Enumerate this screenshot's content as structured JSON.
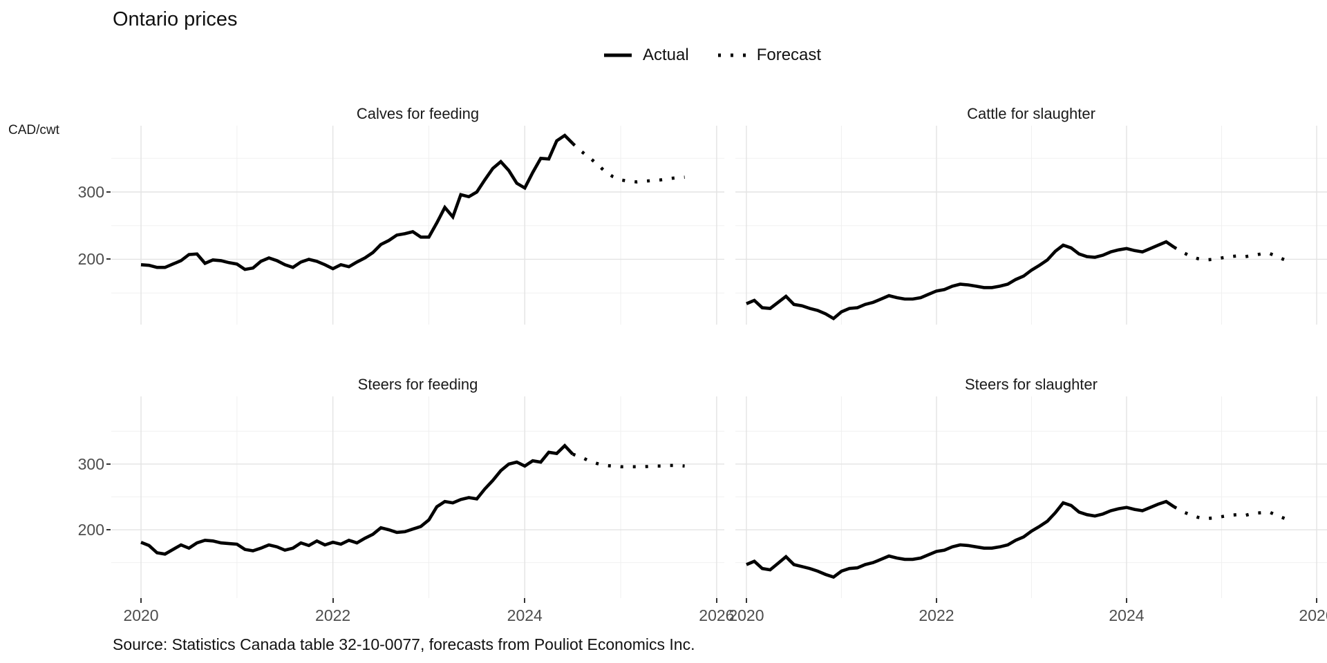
{
  "title": "Ontario prices",
  "y_axis_unit": "CAD/cwt",
  "legend": {
    "actual_label": "Actual",
    "forecast_label": "Forecast"
  },
  "caption": "Source: Statistics Canada table 32-10-0077, forecasts from Pouliot Economics Inc.",
  "colors": {
    "line": "#000000",
    "grid_major": "#e3e3e3",
    "grid_minor": "#f0f0f0",
    "axis_text": "#4d4d4d",
    "tick_mark": "#333333",
    "background": "#ffffff"
  },
  "chart_data": {
    "type": "line",
    "title": "Ontario prices",
    "ylabel": "CAD/cwt",
    "x_tick_labels": [
      "2020",
      "2022",
      "2024",
      "2026"
    ],
    "y_tick_labels": [
      "200",
      "300"
    ],
    "xlim": [
      2019.7,
      2026.1
    ],
    "ylim": [
      100,
      400
    ],
    "grid": "on",
    "legend_position": "top-center",
    "series_style": {
      "actual": "solid",
      "forecast": "dotted"
    },
    "actual_months": "2020-01 to 2024-07, monthly",
    "forecast_months": "2024-08 to 2025-09, monthly",
    "facets": [
      {
        "title": "Calves for feeding",
        "actual": [
          192,
          191,
          188,
          188,
          193,
          198,
          207,
          208,
          194,
          199,
          198,
          195,
          193,
          185,
          187,
          197,
          202,
          198,
          192,
          188,
          196,
          200,
          197,
          192,
          186,
          192,
          189,
          196,
          202,
          210,
          222,
          228,
          236,
          238,
          241,
          233,
          233,
          254,
          277,
          263,
          296,
          293,
          300,
          318,
          335,
          345,
          332,
          313,
          306,
          329,
          350,
          349,
          376,
          384,
          372
        ],
        "forecast": [
          361,
          352,
          342,
          331,
          323,
          318,
          316,
          315,
          316,
          317,
          318,
          320,
          321,
          322
        ]
      },
      {
        "title": "Cattle for slaughter",
        "actual": [
          134,
          139,
          128,
          127,
          136,
          145,
          133,
          131,
          127,
          124,
          119,
          112,
          122,
          127,
          128,
          133,
          136,
          141,
          146,
          143,
          141,
          141,
          143,
          148,
          153,
          155,
          160,
          163,
          162,
          160,
          158,
          158,
          160,
          163,
          170,
          175,
          184,
          191,
          199,
          212,
          221,
          217,
          208,
          204,
          203,
          206,
          211,
          214,
          216,
          213,
          211,
          216,
          221,
          226,
          218
        ],
        "forecast": [
          211,
          205,
          201,
          199,
          200,
          202,
          204,
          205,
          204,
          206,
          208,
          209,
          204,
          199
        ]
      },
      {
        "title": "Steers for feeding",
        "actual": [
          181,
          176,
          165,
          163,
          170,
          177,
          172,
          180,
          184,
          183,
          180,
          179,
          178,
          170,
          168,
          172,
          177,
          174,
          169,
          172,
          180,
          176,
          183,
          177,
          181,
          178,
          184,
          180,
          187,
          193,
          203,
          200,
          196,
          197,
          201,
          205,
          215,
          235,
          243,
          241,
          246,
          249,
          247,
          262,
          275,
          290,
          300,
          303,
          297,
          305,
          303,
          318,
          316,
          328,
          315
        ],
        "forecast": [
          311,
          305,
          301,
          298,
          297,
          296,
          296,
          296,
          296,
          297,
          297,
          298,
          298,
          297
        ]
      },
      {
        "title": "Steers for slaughter",
        "actual": [
          147,
          152,
          141,
          139,
          149,
          159,
          147,
          144,
          141,
          137,
          132,
          128,
          137,
          141,
          142,
          147,
          150,
          155,
          160,
          157,
          155,
          155,
          157,
          162,
          167,
          169,
          174,
          177,
          176,
          174,
          172,
          172,
          174,
          177,
          184,
          189,
          198,
          205,
          213,
          226,
          241,
          237,
          227,
          223,
          221,
          224,
          229,
          232,
          234,
          231,
          229,
          234,
          239,
          243,
          235
        ],
        "forecast": [
          228,
          223,
          219,
          217,
          218,
          220,
          222,
          223,
          222,
          225,
          226,
          227,
          222,
          217
        ]
      }
    ]
  }
}
